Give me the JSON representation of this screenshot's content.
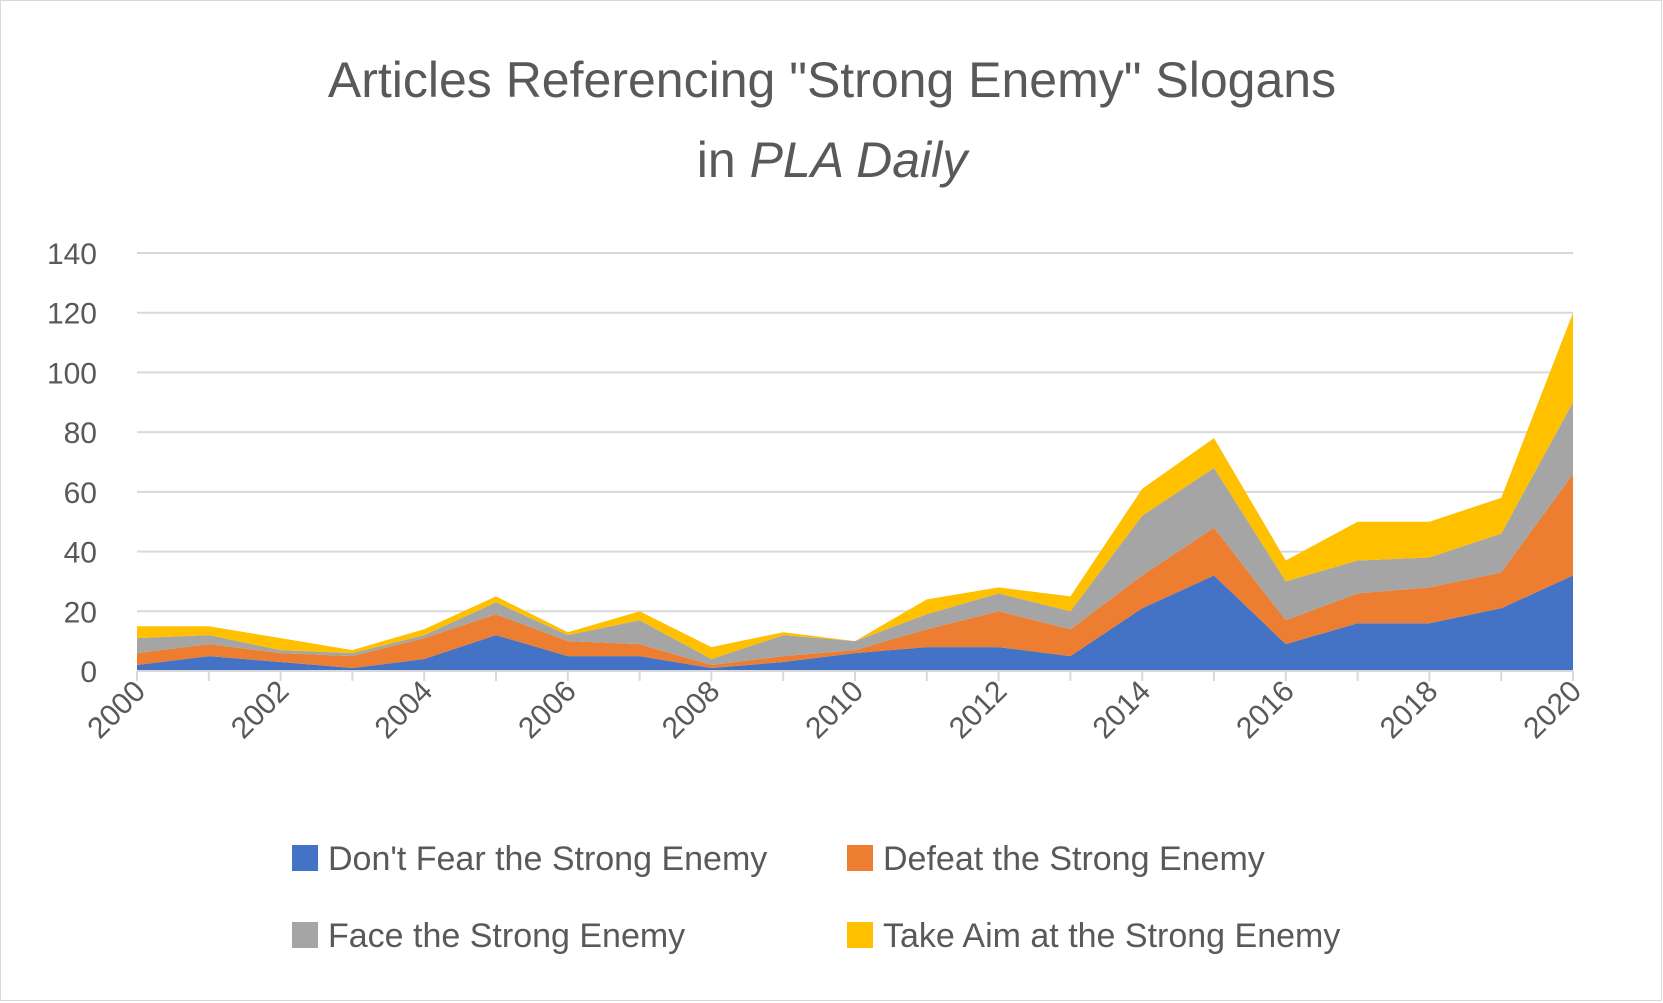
{
  "chart_data": {
    "type": "area",
    "stacked": true,
    "title_line1": "Articles Referencing \"Strong Enemy\" Slogans",
    "title_line2_prefix": "in ",
    "title_line2_italic": "PLA Daily",
    "x": [
      2000,
      2001,
      2002,
      2003,
      2004,
      2005,
      2006,
      2007,
      2008,
      2009,
      2010,
      2011,
      2012,
      2013,
      2014,
      2015,
      2016,
      2017,
      2018,
      2019,
      2020
    ],
    "x_tick_labels": [
      "2000",
      "2002",
      "2004",
      "2006",
      "2008",
      "2010",
      "2012",
      "2014",
      "2016",
      "2018",
      "2020"
    ],
    "ylim": [
      0,
      140
    ],
    "y_tick_labels": [
      "0",
      "20",
      "40",
      "60",
      "80",
      "100",
      "120",
      "140"
    ],
    "grid": true,
    "legend_position": "bottom",
    "series": [
      {
        "name": "Don't Fear the Strong Enemy",
        "color": "#4472C4",
        "values": [
          2,
          5,
          3,
          1,
          4,
          12,
          5,
          5,
          1,
          3,
          6,
          8,
          8,
          5,
          21,
          32,
          9,
          16,
          16,
          21,
          32
        ]
      },
      {
        "name": "Defeat the Strong Enemy",
        "color": "#ED7D31",
        "values": [
          4,
          4,
          3,
          4,
          7,
          7,
          5,
          4,
          1,
          2,
          1,
          6,
          12,
          9,
          11,
          16,
          8,
          10,
          12,
          12,
          34
        ]
      },
      {
        "name": "Face the Strong Enemy",
        "color": "#A5A5A5",
        "values": [
          5,
          3,
          1,
          1,
          1,
          4,
          2,
          8,
          2,
          7,
          3,
          5,
          6,
          6,
          20,
          20,
          13,
          11,
          10,
          13,
          24
        ]
      },
      {
        "name": "Take Aim at the Strong Enemy",
        "color": "#FFC000",
        "values": [
          4,
          3,
          4,
          1,
          2,
          2,
          1,
          3,
          4,
          1,
          0,
          5,
          2,
          5,
          9,
          10,
          7,
          13,
          12,
          12,
          30
        ]
      }
    ]
  }
}
